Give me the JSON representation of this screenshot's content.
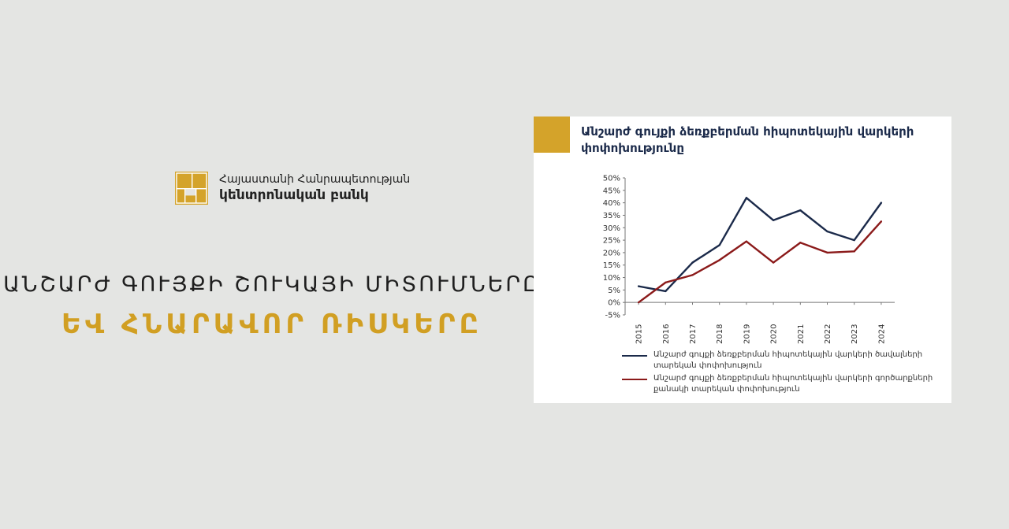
{
  "logo": {
    "line1": "Հայաստանի Հանրապետության",
    "line2": "կենտրոնական բանկ"
  },
  "headline": {
    "line1": "ԱՆՇԱՐԺ ԳՈՒՅՔԻ ՇՈՒԿԱՅԻ ՄԻՏՈՒՄՆԵՐԸ",
    "line2": "ԵՎ ՀՆԱՐԱՎՈՐ ՌԻՍԿԵՐԸ"
  },
  "colors": {
    "background": "#e4e5e3",
    "accent": "#d4a32a",
    "series1": "#1b2a4a",
    "series2": "#8b1a1a"
  },
  "chart_data": {
    "type": "line",
    "title": "Անշարժ գույքի ձեռքբերման հիպոտեկային վարկերի փոփոխությունը",
    "x": [
      "2015",
      "2016",
      "2017",
      "2018",
      "2019",
      "2020",
      "2021",
      "2022",
      "2023",
      "2024"
    ],
    "y_ticks": [
      "50%",
      "45%",
      "40%",
      "35%",
      "30%",
      "25%",
      "20%",
      "15%",
      "10%",
      "5%",
      "0%",
      "-5%"
    ],
    "ylim": [
      -5,
      50
    ],
    "series": [
      {
        "name": "Անշարժ գույքի ձեռքբերման հիպոտեկային վարկերի ծավալների տարեկան փոփոխություն",
        "color": "#1b2a4a",
        "values": [
          6.5,
          4.5,
          16,
          23,
          42,
          33,
          37,
          28.5,
          25,
          40
        ]
      },
      {
        "name": "Անշարժ գույքի ձեռքբերման հիպոտեկային վարկերի գործարքների քանակի տարեկան փոփոխություն",
        "color": "#8b1a1a",
        "values": [
          0,
          8,
          11,
          17,
          24.5,
          16,
          24,
          20,
          20.5,
          32.5
        ]
      }
    ],
    "grid": false,
    "legend": "bottom"
  }
}
